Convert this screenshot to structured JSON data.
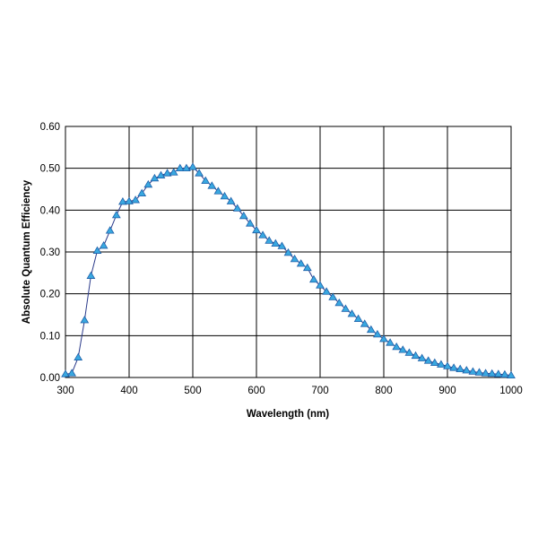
{
  "colors": {
    "line": "#2b3a8a",
    "marker_fill": "#39a8e0",
    "marker_stroke": "#1f5fa8",
    "grid": "#000000",
    "background": "#ffffff"
  },
  "chart_data": {
    "type": "line",
    "title": "",
    "xlabel": "Wavelength (nm)",
    "ylabel": "Absolute Quantum Efficiency",
    "xlim": [
      300,
      1000
    ],
    "ylim": [
      0.0,
      0.6
    ],
    "xticks": [
      300,
      400,
      500,
      600,
      700,
      800,
      900,
      1000
    ],
    "yticks": [
      0.0,
      0.1,
      0.2,
      0.3,
      0.4,
      0.5,
      0.6
    ],
    "xtick_labels": [
      "300",
      "400",
      "500",
      "600",
      "700",
      "800",
      "900",
      "1000"
    ],
    "ytick_labels": [
      "0.00",
      "0.10",
      "0.20",
      "0.30",
      "0.40",
      "0.50",
      "0.60"
    ],
    "grid": true,
    "legend": "none",
    "marker": "triangle",
    "series": [
      {
        "x": [
          300,
          310,
          320,
          330,
          340,
          350,
          360,
          370,
          380,
          390,
          400,
          410,
          420,
          430,
          440,
          450,
          460,
          470,
          480,
          490,
          500,
          510,
          520,
          530,
          540,
          550,
          560,
          570,
          580,
          590,
          600,
          610,
          620,
          630,
          640,
          650,
          660,
          670,
          680,
          690,
          700,
          710,
          720,
          730,
          740,
          750,
          760,
          770,
          780,
          790,
          800,
          810,
          820,
          830,
          840,
          850,
          860,
          870,
          880,
          890,
          900,
          910,
          920,
          930,
          940,
          950,
          960,
          970,
          980,
          990,
          1000
        ],
        "values": [
          0.008,
          0.01,
          0.048,
          0.137,
          0.243,
          0.303,
          0.315,
          0.351,
          0.388,
          0.42,
          0.421,
          0.424,
          0.44,
          0.461,
          0.476,
          0.483,
          0.488,
          0.49,
          0.5,
          0.5,
          0.503,
          0.488,
          0.47,
          0.458,
          0.445,
          0.433,
          0.421,
          0.404,
          0.386,
          0.368,
          0.352,
          0.34,
          0.327,
          0.32,
          0.314,
          0.298,
          0.283,
          0.272,
          0.262,
          0.234,
          0.22,
          0.205,
          0.192,
          0.178,
          0.164,
          0.152,
          0.14,
          0.128,
          0.114,
          0.103,
          0.092,
          0.083,
          0.073,
          0.066,
          0.059,
          0.052,
          0.046,
          0.04,
          0.035,
          0.031,
          0.027,
          0.023,
          0.02,
          0.017,
          0.014,
          0.012,
          0.01,
          0.009,
          0.008,
          0.007,
          0.005
        ]
      }
    ]
  }
}
